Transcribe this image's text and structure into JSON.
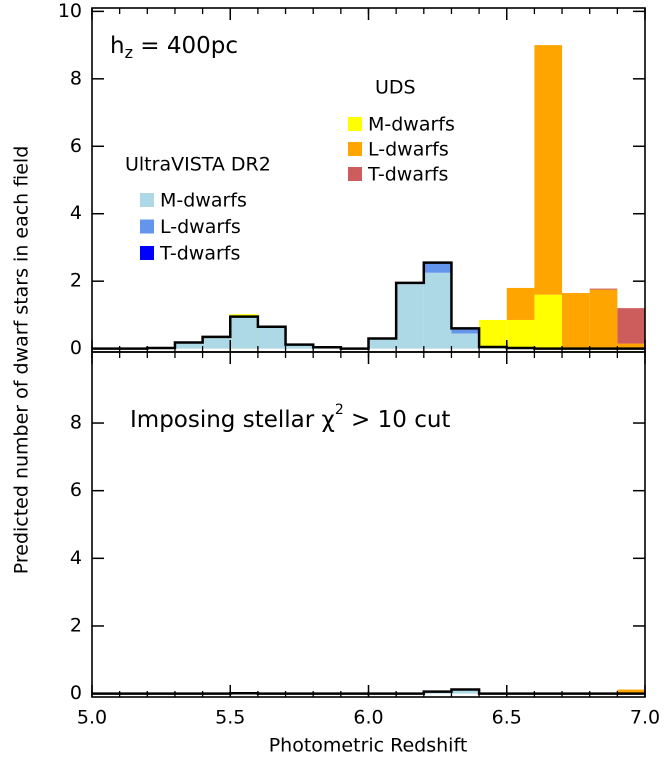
{
  "chart_data": {
    "type": "histogram",
    "x_label": "Photometric Redshift",
    "y_label": "Predicted number of dwarf stars in each field",
    "bins": [
      5.0,
      5.1,
      5.2,
      5.3,
      5.4,
      5.5,
      5.6,
      5.7,
      5.8,
      5.9,
      6.0,
      6.1,
      6.2,
      6.3,
      6.4,
      6.5,
      6.6,
      6.7,
      6.8,
      6.9,
      7.0
    ],
    "xlim": [
      5.0,
      7.0
    ],
    "xticks": [
      {
        "value": 5.0,
        "label": "5.0"
      },
      5.5,
      {
        "value": 6.0,
        "label": "6.0"
      },
      6.5,
      {
        "value": 7.0,
        "label": "7.0"
      }
    ],
    "panels": [
      {
        "annotation": [
          {
            "text": "h"
          },
          {
            "text": "z",
            "shift": "sub"
          },
          {
            "text": " = 400pc"
          }
        ],
        "ylim": [
          -0.1,
          10.1
        ],
        "yticks": [
          0,
          2,
          4,
          6,
          8,
          10
        ],
        "surveys": [
          {
            "name": "UDS",
            "outline": false,
            "series": [
              {
                "name": "M-dwarfs",
                "color": "#ffff00",
                "values": [
                  0,
                  0,
                  0,
                  0,
                  0,
                  1.02,
                  0,
                  0,
                  0,
                  0,
                  0,
                  0,
                  0,
                  0,
                  0.85,
                  0.85,
                  1.6,
                  0,
                  0,
                  0
                ]
              },
              {
                "name": "L-dwarfs",
                "color": "#ffa500",
                "values": [
                  0,
                  0,
                  0,
                  0,
                  0,
                  0,
                  0,
                  0,
                  0,
                  0,
                  0,
                  0,
                  0,
                  0,
                  0,
                  0.95,
                  7.4,
                  1.65,
                  1.75,
                  0.15
                ]
              },
              {
                "name": "T-dwarfs",
                "color": "#cd5c5c",
                "values": [
                  0,
                  0,
                  0,
                  0,
                  0,
                  0,
                  0,
                  0,
                  0,
                  0,
                  0,
                  0,
                  0,
                  0,
                  0,
                  0,
                  0,
                  0,
                  0.03,
                  1.05
                ]
              }
            ]
          },
          {
            "name": "UltraVISTA DR2",
            "outline": true,
            "series": [
              {
                "name": "M-dwarfs",
                "color": "#add8e6",
                "values": [
                  0,
                  0,
                  0.02,
                  0.18,
                  0.35,
                  0.95,
                  0.65,
                  0.12,
                  0.04,
                  0,
                  0.3,
                  1.93,
                  2.25,
                  0.45,
                  0.05,
                  0.02,
                  0,
                  0,
                  0,
                  0
                ]
              },
              {
                "name": "L-dwarfs",
                "color": "#6495ed",
                "values": [
                  0,
                  0,
                  0,
                  0,
                  0,
                  0,
                  0,
                  0,
                  0,
                  0,
                  0,
                  0.02,
                  0.3,
                  0.15,
                  0,
                  0,
                  0,
                  0,
                  0,
                  0
                ]
              },
              {
                "name": "T-dwarfs",
                "color": "#0000ff",
                "values": [
                  0,
                  0,
                  0,
                  0,
                  0,
                  0,
                  0,
                  0,
                  0,
                  0,
                  0,
                  0,
                  0,
                  0,
                  0,
                  0,
                  0,
                  0,
                  0,
                  0
                ]
              }
            ]
          }
        ]
      },
      {
        "annotation": [
          {
            "text": "Imposing stellar "
          },
          {
            "text": "χ"
          },
          {
            "text": "2",
            "shift": "sup"
          },
          {
            "text": " > 10 cut"
          }
        ],
        "ylim": [
          -0.1,
          10.1
        ],
        "yticks": [
          0,
          2,
          4,
          6,
          8
        ],
        "surveys": [
          {
            "name": "UDS",
            "outline": false,
            "series": [
              {
                "name": "M-dwarfs",
                "color": "#ffff00",
                "values": [
                  0,
                  0,
                  0,
                  0,
                  0,
                  0,
                  0,
                  0,
                  0,
                  0,
                  0,
                  0,
                  0,
                  0,
                  0,
                  0,
                  0,
                  0,
                  0,
                  0
                ]
              },
              {
                "name": "L-dwarfs",
                "color": "#ffa500",
                "values": [
                  0,
                  0,
                  0,
                  0,
                  0,
                  0,
                  0,
                  0,
                  0,
                  0,
                  0,
                  0,
                  0,
                  0,
                  0,
                  0,
                  0.02,
                  0,
                  0,
                  0.12
                ]
              },
              {
                "name": "T-dwarfs",
                "color": "#cd5c5c",
                "values": [
                  0,
                  0,
                  0,
                  0,
                  0,
                  0,
                  0,
                  0,
                  0,
                  0,
                  0,
                  0,
                  0,
                  0,
                  0,
                  0,
                  0,
                  0,
                  0,
                  0
                ]
              }
            ]
          },
          {
            "name": "UltraVISTA DR2",
            "outline": true,
            "series": [
              {
                "name": "M-dwarfs",
                "color": "#add8e6",
                "values": [
                  0,
                  0,
                  0,
                  0,
                  0,
                  0.01,
                  0,
                  0,
                  0,
                  0,
                  0,
                  0,
                  0.06,
                  0.12,
                  0,
                  0,
                  0,
                  0,
                  0,
                  0
                ]
              },
              {
                "name": "L-dwarfs",
                "color": "#6495ed",
                "values": [
                  0,
                  0,
                  0,
                  0,
                  0,
                  0,
                  0,
                  0,
                  0,
                  0,
                  0,
                  0,
                  0,
                  0,
                  0,
                  0,
                  0,
                  0,
                  0,
                  0
                ]
              },
              {
                "name": "T-dwarfs",
                "color": "#0000ff",
                "values": [
                  0,
                  0,
                  0,
                  0,
                  0,
                  0,
                  0,
                  0,
                  0,
                  0,
                  0,
                  0,
                  0,
                  0,
                  0,
                  0,
                  0,
                  0,
                  0,
                  0
                ]
              }
            ]
          }
        ]
      }
    ]
  }
}
